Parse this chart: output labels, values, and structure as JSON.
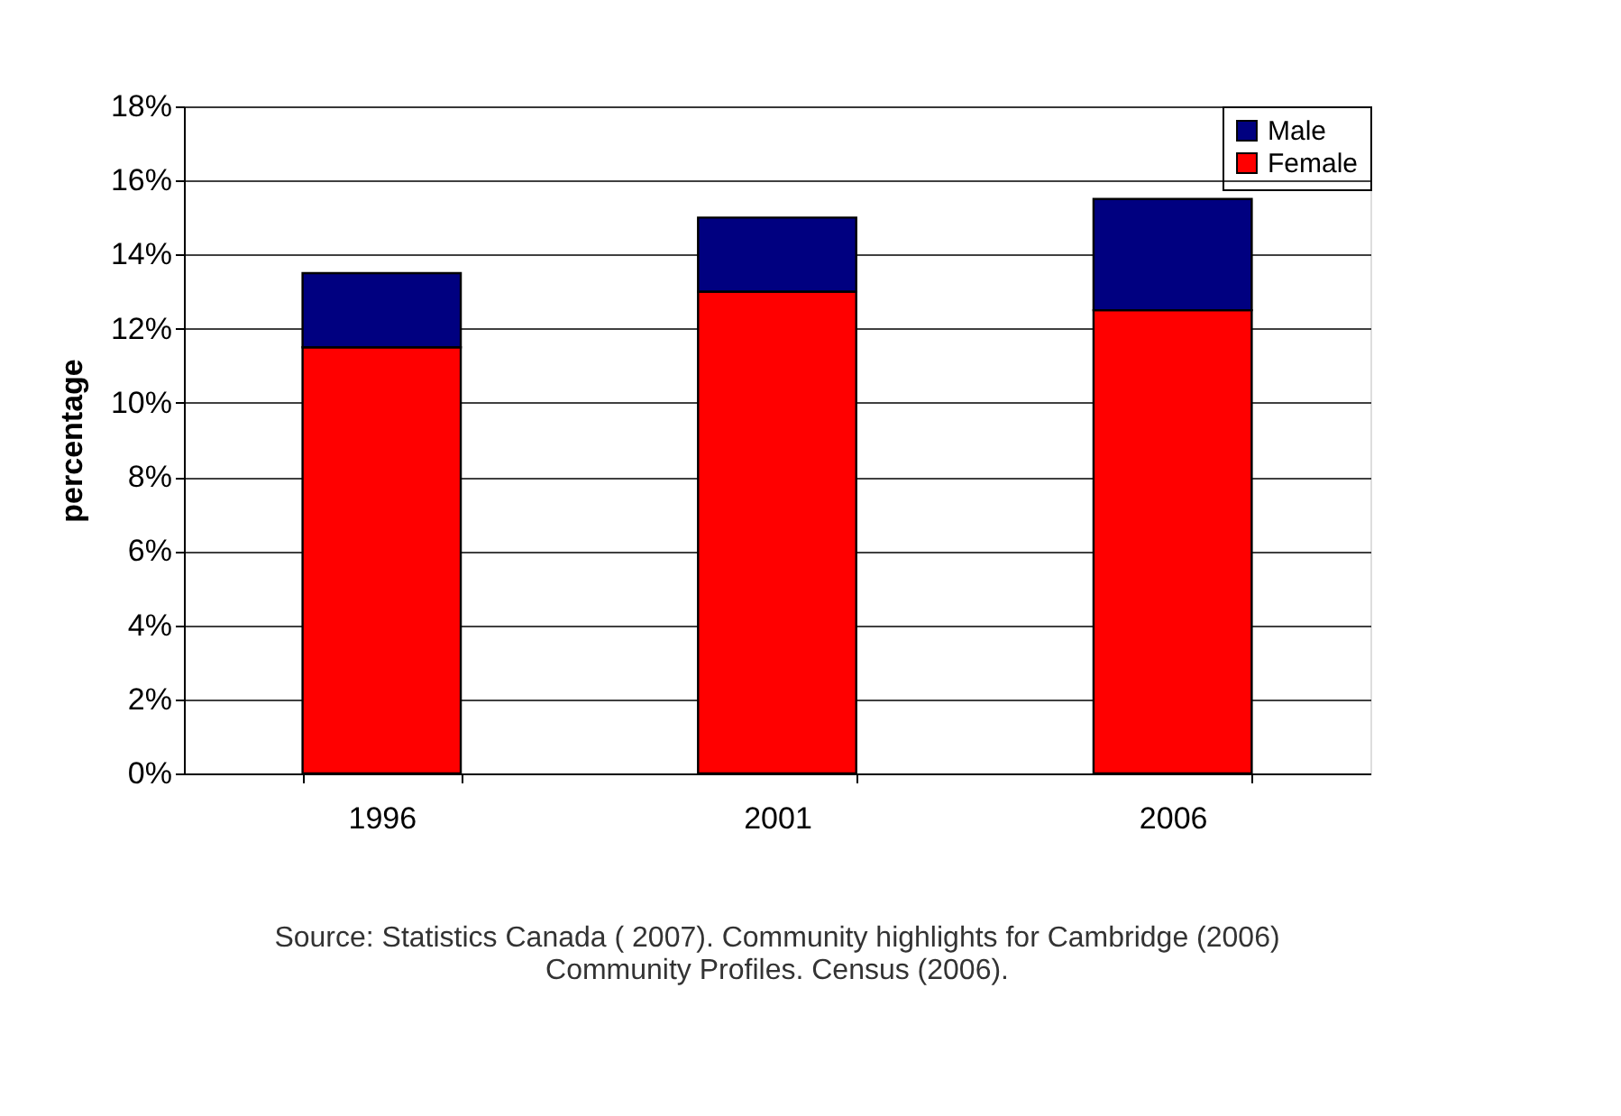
{
  "chart_data": {
    "type": "bar",
    "stacked": true,
    "categories": [
      "1996",
      "2001",
      "2006"
    ],
    "series": [
      {
        "name": "Female",
        "color": "#ff0000",
        "values": [
          11.5,
          13,
          12.5
        ]
      },
      {
        "name": "Male",
        "color": "#000080",
        "values": [
          2,
          2,
          3
        ]
      }
    ],
    "ylabel": "percentage",
    "ylim": [
      0,
      18
    ],
    "yticks": [
      {
        "value": 0,
        "label": "0%"
      },
      {
        "value": 2,
        "label": "2%"
      },
      {
        "value": 4,
        "label": "4%"
      },
      {
        "value": 6,
        "label": "6%"
      },
      {
        "value": 8,
        "label": "8%"
      },
      {
        "value": 10,
        "label": "10%"
      },
      {
        "value": 12,
        "label": "12%"
      },
      {
        "value": 14,
        "label": "14%"
      },
      {
        "value": 16,
        "label": "16%"
      },
      {
        "value": 18,
        "label": "18%"
      }
    ],
    "grid": "y",
    "legend": "top right",
    "annotations": [
      "Source: Statistics Canada ( 2007). Community highlights for Cambridge (2006)",
      "Community Profiles.  Census (2006)."
    ]
  }
}
